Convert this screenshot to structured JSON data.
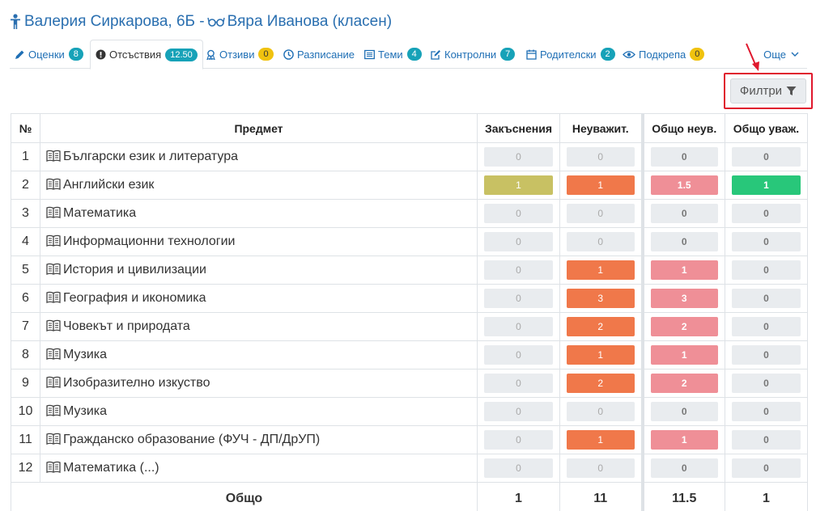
{
  "header": {
    "student": "Валерия Сиркарова, 6Б -",
    "teacher": "Вяра Иванова (класен)"
  },
  "tabs": [
    {
      "label": "Оценки",
      "badge": "8",
      "icon": "pencil-icon"
    },
    {
      "label": "Отсъствия",
      "badge": "12.50",
      "icon": "info-circle-icon"
    },
    {
      "label": "Отзиви",
      "badge": "0",
      "icon": "award-icon"
    },
    {
      "label": "Разписание",
      "icon": "clock-icon"
    },
    {
      "label": "Теми",
      "badge": "4",
      "icon": "list-icon"
    },
    {
      "label": "Контролни",
      "badge": "7",
      "icon": "edit-icon"
    },
    {
      "label": "Родителски",
      "badge": "2",
      "icon": "calendar-icon"
    },
    {
      "label": "Подкрепа",
      "badge": "0",
      "icon": "eye-icon"
    }
  ],
  "more_label": "Още",
  "filter_label": "Филтри",
  "table": {
    "headers": [
      "№",
      "Предмет",
      "Закъснения",
      "Неуважит.",
      "Общо неув.",
      "Общо уваж."
    ],
    "rows": [
      {
        "n": "1",
        "subject": "Български език и литература",
        "late": "0",
        "unexcused": "0",
        "total_unexcused": "0",
        "total_excused": "0"
      },
      {
        "n": "2",
        "subject": "Английски език",
        "late": "1",
        "unexcused": "1",
        "total_unexcused": "1.5",
        "total_excused": "1"
      },
      {
        "n": "3",
        "subject": "Математика",
        "late": "0",
        "unexcused": "0",
        "total_unexcused": "0",
        "total_excused": "0"
      },
      {
        "n": "4",
        "subject": "Информационни технологии",
        "late": "0",
        "unexcused": "0",
        "total_unexcused": "0",
        "total_excused": "0"
      },
      {
        "n": "5",
        "subject": "История и цивилизации",
        "late": "0",
        "unexcused": "1",
        "total_unexcused": "1",
        "total_excused": "0"
      },
      {
        "n": "6",
        "subject": "География и икономика",
        "late": "0",
        "unexcused": "3",
        "total_unexcused": "3",
        "total_excused": "0"
      },
      {
        "n": "7",
        "subject": "Човекът и природата",
        "late": "0",
        "unexcused": "2",
        "total_unexcused": "2",
        "total_excused": "0"
      },
      {
        "n": "8",
        "subject": "Музика",
        "late": "0",
        "unexcused": "1",
        "total_unexcused": "1",
        "total_excused": "0"
      },
      {
        "n": "9",
        "subject": "Изобразително изкуство",
        "late": "0",
        "unexcused": "2",
        "total_unexcused": "2",
        "total_excused": "0"
      },
      {
        "n": "10",
        "subject": "Музика",
        "late": "0",
        "unexcused": "0",
        "total_unexcused": "0",
        "total_excused": "0"
      },
      {
        "n": "11",
        "subject": "Гражданско образование (ФУЧ - ДП/ДрУП)",
        "late": "0",
        "unexcused": "1",
        "total_unexcused": "1",
        "total_excused": "0"
      },
      {
        "n": "12",
        "subject": "Математика (...)",
        "late": "0",
        "unexcused": "0",
        "total_unexcused": "0",
        "total_excused": "0"
      }
    ],
    "total": {
      "label": "Общо",
      "late": "1",
      "unexcused": "11",
      "total_unexcused": "11.5",
      "total_excused": "1"
    }
  },
  "colors": {
    "link": "#1f6fb5",
    "late": "#c8c163",
    "unexcused": "#f0784a",
    "total_unexcused": "#ef8f97",
    "total_excused": "#28c77a",
    "zero": "#e9ecef",
    "highlight": "#e0182d"
  }
}
